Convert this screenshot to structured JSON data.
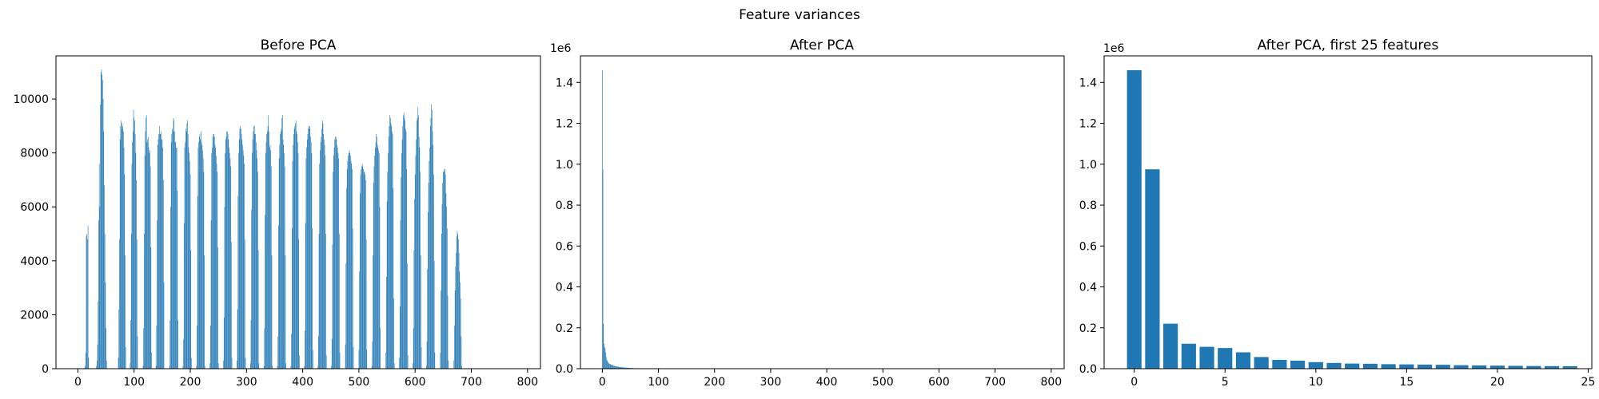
{
  "figure": {
    "suptitle": "Feature variances"
  },
  "colors": {
    "bar": "#1f77b4",
    "axis": "#000000",
    "background": "#ffffff"
  },
  "chart_data": [
    {
      "type": "bar",
      "title": "Before PCA",
      "xlabel": "",
      "ylabel": "",
      "xlim": [
        -39,
        823
      ],
      "ylim": [
        0,
        11600
      ],
      "xticks": [
        0,
        100,
        200,
        300,
        400,
        500,
        600,
        700,
        800
      ],
      "yticks": [
        0,
        2000,
        4000,
        6000,
        8000,
        10000
      ],
      "y_offset_label": "",
      "bar_width": 0.8,
      "x_start": 0,
      "values": [
        0,
        0,
        0,
        0,
        0,
        0,
        0,
        0,
        0,
        0,
        0,
        0,
        40,
        100,
        600,
        4900,
        5000,
        4800,
        5300,
        400,
        0,
        0,
        0,
        0,
        0,
        0,
        0,
        0,
        0,
        0,
        0,
        0,
        20,
        100,
        300,
        900,
        2500,
        5500,
        7600,
        6000,
        9800,
        11000,
        11100,
        10900,
        10700,
        10000,
        8800,
        6800,
        5000,
        3200,
        1500,
        300,
        0,
        0,
        0,
        0,
        0,
        0,
        0,
        0,
        0,
        0,
        0,
        0,
        0,
        0,
        0,
        0,
        0,
        0,
        0,
        0,
        400,
        2200,
        4800,
        8500,
        9000,
        9200,
        9100,
        8900,
        9000,
        8800,
        8200,
        7200,
        4200,
        800,
        0,
        0,
        0,
        0,
        0,
        0,
        0,
        200,
        1800,
        5000,
        7600,
        8400,
        8800,
        9600,
        9300,
        9200,
        8700,
        8000,
        7000,
        4800,
        1200,
        0,
        0,
        0,
        0,
        0,
        0,
        0,
        0,
        0,
        100,
        1500,
        5000,
        7900,
        8800,
        9300,
        9400,
        8400,
        8500,
        8600,
        8200,
        8000,
        8100,
        7500,
        4500,
        600,
        0,
        0,
        0,
        0,
        0,
        0,
        0,
        100,
        1600,
        5500,
        8300,
        8500,
        8700,
        9000,
        8700,
        8700,
        8800,
        8500,
        8500,
        8200,
        7000,
        3200,
        0,
        0,
        0,
        0,
        0,
        0,
        0,
        0,
        0,
        100,
        1800,
        6000,
        8400,
        8700,
        8900,
        8800,
        9300,
        9200,
        8800,
        8400,
        8400,
        8200,
        8200,
        6600,
        1800,
        0,
        0,
        0,
        0,
        0,
        0,
        0,
        0,
        100,
        1100,
        5400,
        8200,
        8400,
        8900,
        8800,
        9100,
        9200,
        8700,
        8200,
        8000,
        7700,
        7200,
        4400,
        400,
        0,
        0,
        0,
        0,
        0,
        0,
        0,
        0,
        100,
        1600,
        6400,
        8200,
        8400,
        8600,
        8700,
        8500,
        8800,
        8400,
        8300,
        8100,
        7800,
        7300,
        4200,
        100,
        0,
        0,
        0,
        0,
        0,
        0,
        0,
        0,
        200,
        1600,
        5500,
        8000,
        8200,
        8600,
        8700,
        8700,
        8600,
        8300,
        8200,
        7900,
        7600,
        7300,
        4500,
        200,
        0,
        0,
        0,
        0,
        0,
        0,
        0,
        0,
        300,
        1900,
        6000,
        8000,
        8500,
        8600,
        8800,
        8800,
        8700,
        8500,
        8200,
        8000,
        7800,
        7500,
        4700,
        400,
        0,
        0,
        0,
        0,
        0,
        0,
        0,
        0,
        300,
        2200,
        6400,
        8000,
        8500,
        8900,
        9000,
        8900,
        8700,
        8500,
        8300,
        8100,
        7900,
        7600,
        4800,
        400,
        0,
        0,
        0,
        0,
        0,
        0,
        0,
        0,
        200,
        1800,
        5900,
        8000,
        8500,
        8800,
        9000,
        9000,
        8700,
        8700,
        8400,
        8100,
        7800,
        7300,
        4400,
        200,
        0,
        0,
        0,
        0,
        0,
        0,
        0,
        0,
        100,
        1500,
        5700,
        8000,
        8400,
        8700,
        8800,
        9000,
        9400,
        8800,
        8200,
        8300,
        8100,
        7500,
        4200,
        100,
        0,
        0,
        0,
        0,
        0,
        0,
        0,
        0,
        100,
        1200,
        5300,
        7800,
        8300,
        8700,
        8800,
        8900,
        9300,
        9400,
        8500,
        8300,
        8000,
        7500,
        4200,
        200,
        0,
        0,
        0,
        0,
        0,
        0,
        0,
        0,
        100,
        1300,
        5200,
        7700,
        8300,
        8700,
        8900,
        9000,
        9100,
        9200,
        8800,
        8700,
        8400,
        8000,
        4800,
        500,
        0,
        0,
        0,
        0,
        0,
        0,
        0,
        0,
        100,
        1400,
        5400,
        7800,
        8200,
        8500,
        8700,
        8900,
        9000,
        9000,
        8900,
        8600,
        8400,
        8000,
        5200,
        700,
        0,
        0,
        0,
        0,
        0,
        0,
        0,
        0,
        100,
        1200,
        5000,
        7600,
        8100,
        8400,
        8600,
        8900,
        9200,
        9100,
        8700,
        8500,
        8300,
        7900,
        5000,
        500,
        0,
        0,
        0,
        0,
        0,
        0,
        0,
        0,
        100,
        1100,
        4600,
        7300,
        7900,
        8200,
        8500,
        8600,
        8600,
        8500,
        8300,
        8200,
        8000,
        7800,
        5000,
        600,
        0,
        0,
        0,
        0,
        0,
        0,
        0,
        0,
        0,
        900,
        3900,
        6700,
        7400,
        7700,
        7900,
        8000,
        8100,
        8000,
        7900,
        7700,
        7600,
        7400,
        5200,
        800,
        0,
        0,
        0,
        0,
        0,
        0,
        0,
        0,
        0,
        700,
        3600,
        6500,
        7200,
        7400,
        7500,
        7600,
        7500,
        7400,
        7300,
        7300,
        7200,
        7000,
        4800,
        700,
        0,
        0,
        0,
        0,
        0,
        0,
        0,
        0,
        100,
        1000,
        4200,
        6900,
        7500,
        7900,
        8200,
        8400,
        8700,
        8600,
        8300,
        8200,
        8100,
        8000,
        6000,
        1500,
        0,
        0,
        0,
        0,
        0,
        0,
        0,
        0,
        0,
        600,
        3400,
        6200,
        7300,
        8000,
        8600,
        9000,
        9400,
        9300,
        9100,
        9000,
        8800,
        8700,
        6700,
        2600,
        200,
        0,
        0,
        0,
        0,
        0,
        0,
        0,
        0,
        400,
        2300,
        5500,
        7100,
        8000,
        8500,
        9000,
        9400,
        9500,
        9300,
        9200,
        8900,
        8800,
        7400,
        3900,
        500,
        0,
        0,
        0,
        0,
        0,
        0,
        0,
        0,
        200,
        1500,
        4400,
        6300,
        7200,
        7900,
        8500,
        9200,
        9300,
        9700,
        9400,
        8600,
        8200,
        7300,
        4200,
        800,
        0,
        0,
        0,
        0,
        0,
        0,
        0,
        0,
        100,
        1000,
        3700,
        5800,
        6900,
        7700,
        8200,
        9000,
        9300,
        9800,
        9600,
        8800,
        8300,
        7200,
        4000,
        600,
        0,
        0,
        0,
        0,
        0,
        0,
        0,
        0,
        0,
        600,
        2900,
        5000,
        6100,
        6900,
        7300,
        7300,
        7400,
        7400,
        7200,
        6500,
        6000,
        5200,
        2700,
        300,
        0,
        0,
        0,
        0,
        0,
        0,
        0,
        0,
        0,
        300,
        1600,
        2900,
        3800,
        4300,
        4900,
        5100,
        5000,
        4800,
        4300,
        3600,
        3200,
        2600,
        1200,
        100,
        0,
        0,
        0,
        0,
        0,
        0,
        0,
        0,
        0,
        0,
        0,
        0
      ]
    },
    {
      "type": "bar",
      "title": "After PCA",
      "xlabel": "",
      "ylabel": "",
      "xlim": [
        -39,
        823
      ],
      "ylim": [
        0,
        1530000
      ],
      "xticks": [
        0,
        100,
        200,
        300,
        400,
        500,
        600,
        700,
        800
      ],
      "yticks": [
        0,
        200000,
        400000,
        600000,
        800000,
        1000000,
        1200000,
        1400000
      ],
      "ytick_labels": [
        "0.0",
        "0.2",
        "0.4",
        "0.6",
        "0.8",
        "1.0",
        "1.2",
        "1.4"
      ],
      "y_offset_label": "1e6",
      "bar_width": 0.8,
      "x_start": 0,
      "values": [
        1460000,
        975000,
        220000,
        122000,
        107000,
        101000,
        80000,
        57000,
        43000,
        39000,
        32000,
        28000,
        25000,
        24000,
        22000,
        21000,
        20000,
        19000,
        17000,
        16000,
        15000,
        14000,
        13000,
        12500,
        12000,
        11000,
        10500,
        10000,
        9500,
        9000,
        8500,
        8000,
        7700,
        7400,
        7100,
        6800,
        6500,
        6200,
        6000,
        5800,
        5500,
        5300,
        5100,
        4900,
        4700,
        4500,
        4300,
        4100,
        3900,
        3700,
        3500,
        3300,
        3100,
        2900,
        2700,
        2500,
        2300,
        2100,
        1900,
        1700,
        1500,
        1300,
        1100,
        950,
        800,
        650,
        500,
        400,
        300,
        200,
        150,
        100
      ]
    },
    {
      "type": "bar",
      "title": "After PCA, first 25 features",
      "xlabel": "",
      "ylabel": "",
      "xlim": [
        -1.66,
        25.2
      ],
      "ylim": [
        0,
        1530000
      ],
      "xticks": [
        0,
        5,
        10,
        15,
        20,
        25
      ],
      "yticks": [
        0,
        200000,
        400000,
        600000,
        800000,
        1000000,
        1200000,
        1400000
      ],
      "ytick_labels": [
        "0.0",
        "0.2",
        "0.4",
        "0.6",
        "0.8",
        "1.0",
        "1.2",
        "1.4"
      ],
      "y_offset_label": "1e6",
      "bar_width": 0.8,
      "x_start": 0,
      "values": [
        1460000,
        975000,
        220000,
        122000,
        107000,
        101000,
        80000,
        57000,
        43000,
        39000,
        32000,
        28000,
        25000,
        24000,
        22000,
        21000,
        20000,
        19000,
        17000,
        16000,
        15000,
        14000,
        13000,
        12500,
        12000
      ]
    }
  ]
}
